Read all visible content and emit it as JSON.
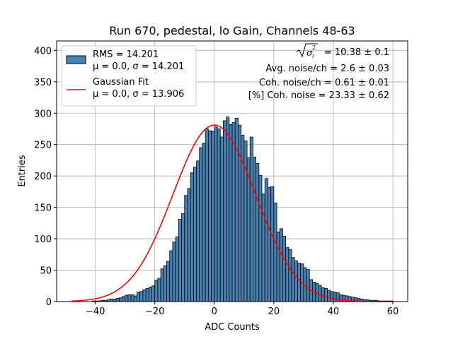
{
  "chart_data": {
    "type": "bar",
    "title": "Run 670, pedestal, lo Gain, Channels 48-63",
    "xlabel": "ADC Counts",
    "ylabel": "Entries",
    "xlim": [
      -53,
      65
    ],
    "ylim": [
      0,
      415
    ],
    "xticks": [
      -40,
      -20,
      0,
      20,
      40,
      60
    ],
    "yticks": [
      0,
      50,
      100,
      150,
      200,
      250,
      300,
      350,
      400
    ],
    "grid": true,
    "bin_width": 1,
    "bin_start": -49,
    "values": [
      0,
      0,
      0,
      0,
      0,
      0,
      0,
      0,
      1,
      1,
      1,
      2,
      2,
      3,
      4,
      4,
      5,
      6,
      8,
      10,
      11,
      11,
      9,
      15,
      16,
      19,
      21,
      23,
      25,
      34,
      37,
      52,
      57,
      64,
      81,
      95,
      103,
      131,
      140,
      169,
      180,
      205,
      214,
      224,
      245,
      252,
      275,
      272,
      271,
      278,
      275,
      262,
      288,
      294,
      282,
      285,
      292,
      281,
      265,
      256,
      229,
      262,
      230,
      220,
      201,
      171,
      196,
      182,
      183,
      157,
      111,
      116,
      104,
      86,
      83,
      70,
      65,
      61,
      60,
      54,
      51,
      35,
      31,
      29,
      26,
      22,
      21,
      18,
      16,
      15,
      14,
      11,
      10,
      9,
      8,
      7,
      6,
      5,
      4,
      3,
      3,
      2,
      2,
      2,
      1,
      1,
      1,
      1,
      1
    ],
    "series": [
      {
        "name": "RMS = 14.201",
        "sublabel": "μ = 0.0, σ = 14.201",
        "color": "#4682b4",
        "edge": "#000000"
      },
      {
        "name": "Gaussian Fit",
        "sublabel": "μ = 0.0, σ = 13.906",
        "color": "#ff0000",
        "mu": 0.0,
        "sigma": 13.906,
        "amplitude": 281
      }
    ],
    "legend_placement": "upper-left",
    "annotations": {
      "line1_value": " = 10.38 ± 0.1",
      "line2": "Avg. noise/ch = 2.6 ± 0.03",
      "line3": "Coh. noise/ch = 0.61 ± 0.01",
      "line4": "[%] Coh. noise = 23.33 ± 0.62"
    }
  }
}
